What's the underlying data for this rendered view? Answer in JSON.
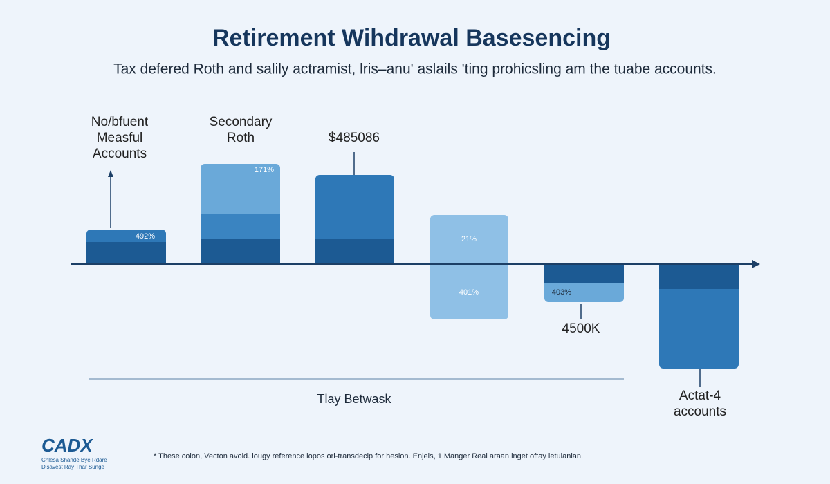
{
  "header": {
    "title": "Retirement Wihdrawal Basesencing",
    "subtitle": "Tax defered Roth and salily actramist, lris–anu' aslails 'ting prohicsling am the tuabe accounts."
  },
  "annotations": [
    {
      "lines": [
        "No/bfuent",
        "Measful",
        "Accounts"
      ]
    },
    {
      "lines": [
        "Secondary",
        "Roth"
      ]
    },
    {
      "lines": [
        "$485086"
      ]
    },
    {
      "lines": [
        "4500K"
      ]
    },
    {
      "lines": [
        "Actat-4",
        "accounts"
      ]
    }
  ],
  "bar_labels": [
    "492%",
    "171%",
    "21%",
    "401%",
    "403%"
  ],
  "axis_label": "Tlay Betwask",
  "footnote": "* These colon, Vecton avoid. lougy reference lopos orl-transdecip for hesion. Enjels, 1 Manger Real araan inget oftay letulanian.",
  "logo": {
    "mark": "CADX",
    "lines": [
      "Cnlesa Shande Bye Rdare",
      "Disavest Ray Thar Sunge"
    ]
  }
}
